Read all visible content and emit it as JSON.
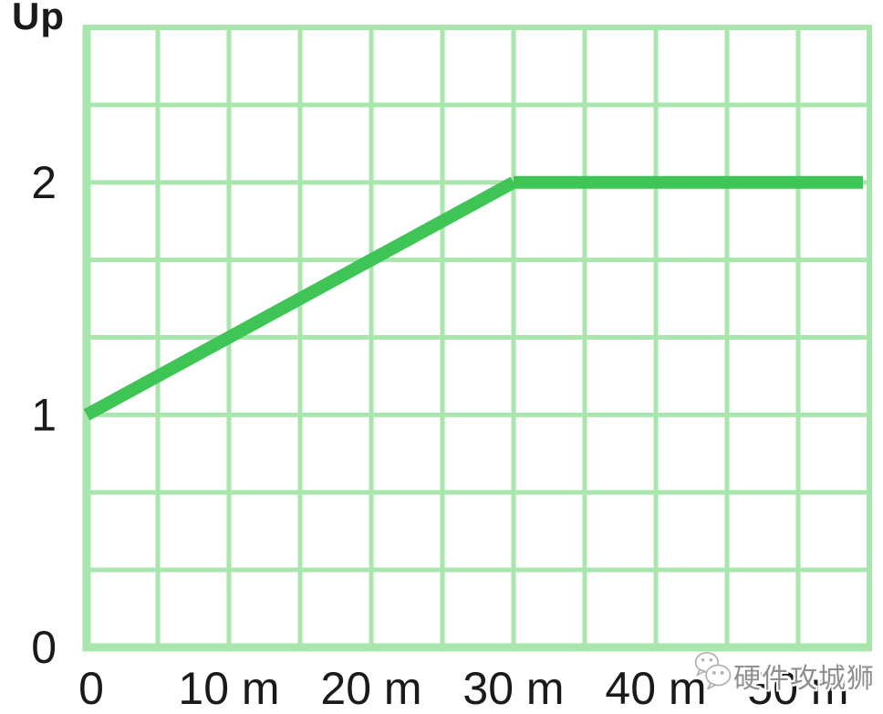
{
  "chart_data": {
    "type": "line",
    "title": "",
    "y_axis_title": "Up",
    "xlabel": "",
    "ylabel": "Up",
    "xlim": [
      0,
      55
    ],
    "ylim": [
      0,
      2.6666667
    ],
    "x_minor_step": 5,
    "y_minor_step": 0.3333333,
    "grid": true,
    "legend": "none",
    "x_ticks": [
      {
        "value": 0,
        "label": "0"
      },
      {
        "value": 10,
        "label": "10 m"
      },
      {
        "value": 20,
        "label": "20 m"
      },
      {
        "value": 30,
        "label": "30 m"
      },
      {
        "value": 40,
        "label": "40 m"
      },
      {
        "value": 50,
        "label": "50 m"
      }
    ],
    "y_ticks": [
      {
        "value": 0,
        "label": "0"
      },
      {
        "value": 1,
        "label": "1"
      },
      {
        "value": 2,
        "label": "2"
      }
    ],
    "series": [
      {
        "name": "Up",
        "points": [
          [
            0,
            1
          ],
          [
            30,
            2
          ],
          [
            55,
            2
          ]
        ]
      }
    ],
    "colors": {
      "grid": "#a9e6ae",
      "line": "#3ec556",
      "text": "#1a1a1a"
    }
  },
  "watermark": {
    "icon": "wechat-icon",
    "text": "硬件攻城狮"
  }
}
